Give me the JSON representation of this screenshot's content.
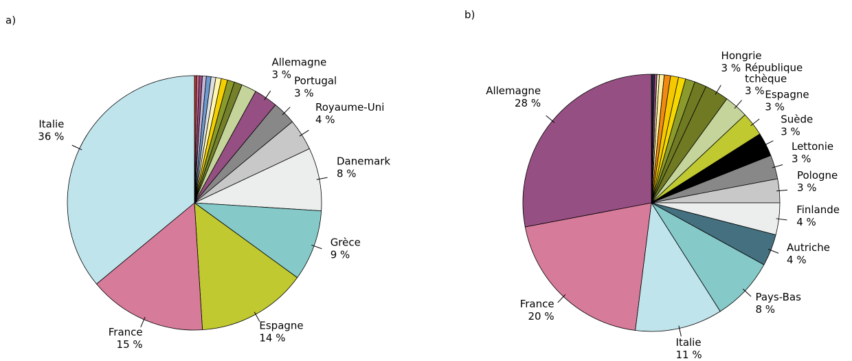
{
  "chart_data": [
    {
      "type": "pie",
      "title": "a)",
      "categories": [
        null,
        null,
        null,
        null,
        null,
        null,
        null,
        null,
        null,
        null,
        null,
        "Allemagne",
        "Portugal",
        "Royaume-Uni",
        "Danemark",
        "Grèce",
        "Espagne",
        "France",
        "Italie"
      ],
      "values": [
        0.3,
        0.3,
        0.4,
        0.5,
        0.6,
        0.6,
        0.7,
        0.8,
        0.9,
        1.0,
        1.9,
        3,
        3,
        4,
        8,
        9,
        14,
        15,
        36
      ],
      "value_labels": [
        null,
        null,
        null,
        null,
        null,
        null,
        null,
        null,
        null,
        null,
        null,
        "3 %",
        "3 %",
        "4 %",
        "8 %",
        "9 %",
        "14 %",
        "15 %",
        "36 %"
      ],
      "colors": [
        "#c0392b",
        "#e07aa0",
        "#954f82",
        "#c8b8d8",
        "#6c9ad0",
        "#e0e0e0",
        "#fff6b0",
        "#f5d000",
        "#8a9a2c",
        "#75802a",
        "#c4d49a",
        "#954f82",
        "#888888",
        "#c8c8c8",
        "#eceeee",
        "#85c9c8",
        "#c0c930",
        "#d67b9a",
        "#c0e4ec"
      ]
    },
    {
      "type": "pie",
      "title": "b)",
      "categories": [
        null,
        null,
        null,
        null,
        null,
        null,
        null,
        null,
        null,
        null,
        "Hongrie",
        "République tchèque",
        "Espagne",
        "Suède",
        "Lettonie",
        "Pologne",
        "Finlande",
        "Autriche",
        "Pays-Bas",
        "Italie",
        "France",
        "Allemagne"
      ],
      "values": [
        0.2,
        0.2,
        0.3,
        0.3,
        0.6,
        0.8,
        1.0,
        0.9,
        1.2,
        1.5,
        3,
        3,
        3,
        3,
        3,
        3,
        4,
        4,
        8,
        11,
        20,
        28
      ],
      "value_labels": [
        null,
        null,
        null,
        null,
        null,
        null,
        null,
        null,
        null,
        null,
        "3 %",
        "3 %",
        "3 %",
        "3 %",
        "3 %",
        "3 %",
        "4 %",
        "4 %",
        "8 %",
        "11 %",
        "20 %",
        "28 %"
      ],
      "colors": [
        "#333333",
        "#3a3a6a",
        "#954f82",
        "#fff6c0",
        "#fff0a0",
        "#f08a10",
        "#f5c800",
        "#f5d800",
        "#8a9a2c",
        "#6f7a22",
        "#6f7a22",
        "#c4d49a",
        "#c0c930",
        "#000000",
        "#888888",
        "#c8c8c8",
        "#eceeee",
        "#44707f",
        "#85c9c8",
        "#c0e4ec",
        "#d67b9a",
        "#954f82"
      ]
    }
  ]
}
